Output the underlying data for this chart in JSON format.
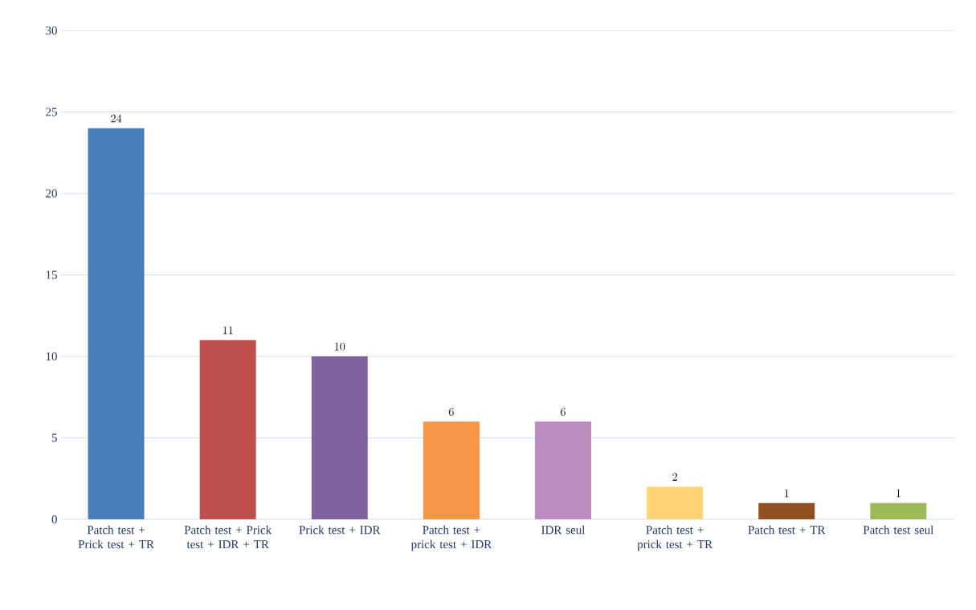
{
  "chart_data": {
    "type": "bar",
    "categories": [
      "Patch test + Prick test + TR",
      "Patch test + Prick test + IDR + TR",
      "Prick test + IDR",
      "Patch test + prick test + IDR",
      "IDR seul",
      "Patch test + prick test + TR",
      "Patch test + TR",
      "Patch test seul"
    ],
    "values": [
      24,
      11,
      10,
      6,
      6,
      2,
      1,
      1
    ],
    "colors": [
      "#4a7ebb",
      "#c0504d",
      "#8064a2",
      "#f79646",
      "#bb8bc0",
      "#ffd374",
      "#924f22",
      "#9bbb59"
    ],
    "ylim": [
      0,
      30
    ],
    "yticks": [
      0,
      5,
      10,
      15,
      20,
      25,
      30
    ],
    "grid": "y",
    "data_labels": true
  }
}
